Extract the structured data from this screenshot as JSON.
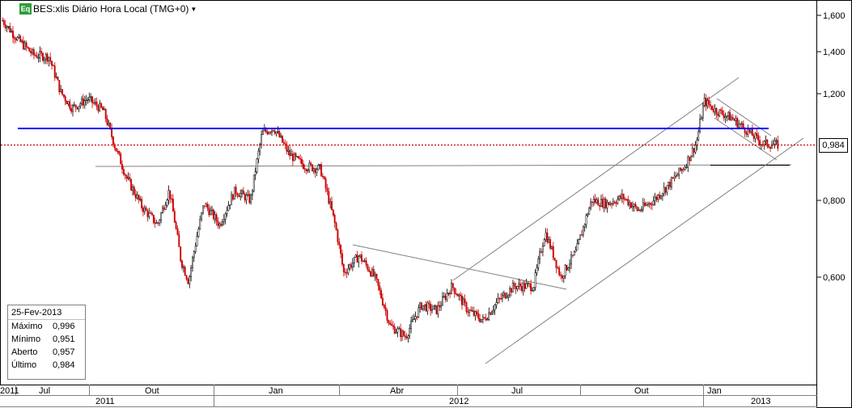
{
  "header": {
    "badge": "Eq",
    "title": "BES:xlis Diário Hora Local (TMG+0)"
  },
  "info_panel": {
    "date": "25-Fev-2013",
    "rows": [
      {
        "label": "Máximo",
        "value": "0,996"
      },
      {
        "label": "Mínimo",
        "value": "0,951"
      },
      {
        "label": "Aberto",
        "value": "0,957"
      },
      {
        "label": "Último",
        "value": "0,984"
      }
    ]
  },
  "last_price_label": "0,984",
  "colors": {
    "up_candle": "#000000",
    "down_candle": "#cc0000",
    "resistance": "#0000ff",
    "last_price": "#cc0000",
    "trendline": "#808080"
  },
  "chart_data": {
    "type": "candlestick",
    "title": "BES:xlis Diário Hora Local (TMG+0)",
    "y_scale": "log",
    "ylim": [
      0.45,
      1.65
    ],
    "y_ticks": [
      "1,600",
      "1,400",
      "1,200",
      "0,800",
      "0,600"
    ],
    "y_tick_values": [
      1.6,
      1.4,
      1.2,
      0.8,
      0.6
    ],
    "x_month_labels": [
      "2011",
      "Jul",
      "Out",
      "Jan",
      "Abr",
      "Jul",
      "Out",
      "Jan"
    ],
    "x_year_labels": [
      "2011",
      "2012",
      "2013"
    ],
    "last_price": 0.984,
    "resistance_level": 1.06,
    "support_level": 0.91,
    "close_path": [
      {
        "t": 0.0,
        "p": 1.57
      },
      {
        "t": 0.02,
        "p": 1.46
      },
      {
        "t": 0.04,
        "p": 1.38
      },
      {
        "t": 0.06,
        "p": 1.37
      },
      {
        "t": 0.075,
        "p": 1.2
      },
      {
        "t": 0.09,
        "p": 1.13
      },
      {
        "t": 0.11,
        "p": 1.17
      },
      {
        "t": 0.13,
        "p": 1.12
      },
      {
        "t": 0.145,
        "p": 0.98
      },
      {
        "t": 0.16,
        "p": 0.87
      },
      {
        "t": 0.18,
        "p": 0.78
      },
      {
        "t": 0.2,
        "p": 0.73
      },
      {
        "t": 0.215,
        "p": 0.83
      },
      {
        "t": 0.23,
        "p": 0.64
      },
      {
        "t": 0.24,
        "p": 0.59
      },
      {
        "t": 0.26,
        "p": 0.79
      },
      {
        "t": 0.28,
        "p": 0.73
      },
      {
        "t": 0.3,
        "p": 0.83
      },
      {
        "t": 0.32,
        "p": 0.8
      },
      {
        "t": 0.335,
        "p": 1.03
      },
      {
        "t": 0.35,
        "p": 1.05
      },
      {
        "t": 0.37,
        "p": 0.95
      },
      {
        "t": 0.39,
        "p": 0.91
      },
      {
        "t": 0.41,
        "p": 0.9
      },
      {
        "t": 0.43,
        "p": 0.72
      },
      {
        "t": 0.44,
        "p": 0.61
      },
      {
        "t": 0.46,
        "p": 0.65
      },
      {
        "t": 0.48,
        "p": 0.6
      },
      {
        "t": 0.5,
        "p": 0.5
      },
      {
        "t": 0.52,
        "p": 0.48
      },
      {
        "t": 0.54,
        "p": 0.54
      },
      {
        "t": 0.56,
        "p": 0.53
      },
      {
        "t": 0.58,
        "p": 0.58
      },
      {
        "t": 0.6,
        "p": 0.53
      },
      {
        "t": 0.62,
        "p": 0.51
      },
      {
        "t": 0.64,
        "p": 0.55
      },
      {
        "t": 0.66,
        "p": 0.58
      },
      {
        "t": 0.685,
        "p": 0.58
      },
      {
        "t": 0.7,
        "p": 0.71
      },
      {
        "t": 0.72,
        "p": 0.6
      },
      {
        "t": 0.74,
        "p": 0.66
      },
      {
        "t": 0.76,
        "p": 0.8
      },
      {
        "t": 0.78,
        "p": 0.79
      },
      {
        "t": 0.8,
        "p": 0.81
      },
      {
        "t": 0.82,
        "p": 0.77
      },
      {
        "t": 0.84,
        "p": 0.8
      },
      {
        "t": 0.86,
        "p": 0.85
      },
      {
        "t": 0.88,
        "p": 0.91
      },
      {
        "t": 0.895,
        "p": 0.99
      },
      {
        "t": 0.905,
        "p": 1.16
      },
      {
        "t": 0.92,
        "p": 1.12
      },
      {
        "t": 0.94,
        "p": 1.09
      },
      {
        "t": 0.96,
        "p": 1.04
      },
      {
        "t": 0.98,
        "p": 0.99
      },
      {
        "t": 1.0,
        "p": 0.984
      }
    ]
  }
}
